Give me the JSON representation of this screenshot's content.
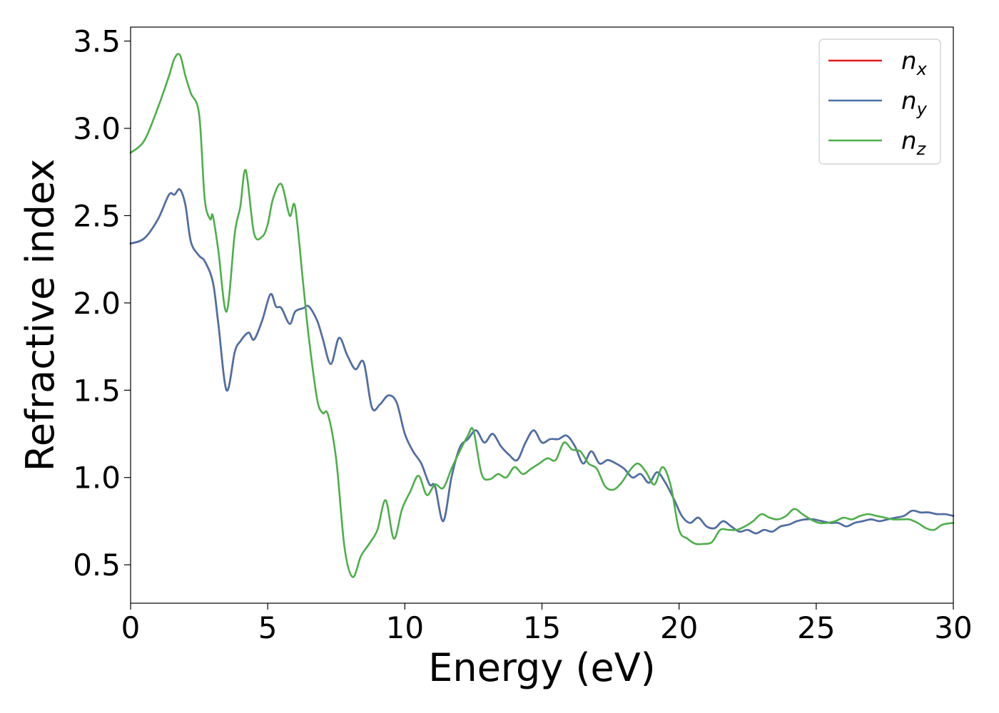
{
  "chart_data": {
    "type": "line",
    "title": "",
    "xlabel": "Energy (eV)",
    "ylabel": "Refractive index",
    "xlim": [
      0,
      30
    ],
    "ylim": [
      0.28,
      3.58
    ],
    "xticks": [
      0,
      5,
      10,
      15,
      20,
      25,
      30
    ],
    "xtick_labels": [
      "0",
      "5",
      "10",
      "15",
      "20",
      "25",
      "30"
    ],
    "yticks": [
      0.5,
      1.0,
      1.5,
      2.0,
      2.5,
      3.0,
      3.5
    ],
    "ytick_labels": [
      "0.5",
      "1.0",
      "1.5",
      "2.0",
      "2.5",
      "3.0",
      "3.5"
    ],
    "grid": false,
    "legend_position": "top-right",
    "series": [
      {
        "name": "n_x",
        "label_base": "n",
        "label_sub": "x",
        "color": "#e41a1c",
        "x": [
          0,
          0.5,
          1.0,
          1.4,
          1.6,
          1.8,
          2.0,
          2.2,
          2.5,
          2.7,
          3.0,
          3.2,
          3.5,
          3.8,
          4.0,
          4.3,
          4.5,
          4.8,
          5.1,
          5.3,
          5.5,
          5.8,
          6.0,
          6.3,
          6.5,
          6.8,
          7.0,
          7.3,
          7.6,
          7.9,
          8.2,
          8.5,
          8.8,
          9.1,
          9.4,
          9.7,
          10.0,
          10.3,
          10.6,
          10.9,
          11.1,
          11.4,
          11.7,
          12.0,
          12.3,
          12.6,
          12.9,
          13.2,
          13.5,
          13.8,
          14.1,
          14.4,
          14.7,
          15.0,
          15.3,
          15.6,
          15.9,
          16.2,
          16.5,
          16.8,
          17.1,
          17.4,
          17.7,
          18.0,
          18.3,
          18.6,
          18.9,
          19.2,
          19.5,
          19.8,
          20.1,
          20.4,
          20.7,
          21.0,
          21.3,
          21.6,
          21.9,
          22.2,
          22.5,
          22.8,
          23.1,
          23.4,
          23.7,
          24.0,
          24.3,
          24.6,
          24.9,
          25.2,
          25.5,
          25.8,
          26.1,
          26.4,
          26.7,
          27.0,
          27.3,
          27.6,
          27.9,
          28.2,
          28.5,
          28.8,
          29.1,
          29.4,
          29.7,
          30.0
        ],
        "y": [
          2.34,
          2.37,
          2.48,
          2.62,
          2.62,
          2.65,
          2.56,
          2.35,
          2.27,
          2.24,
          2.12,
          1.88,
          1.5,
          1.72,
          1.78,
          1.83,
          1.79,
          1.9,
          2.05,
          1.98,
          1.97,
          1.88,
          1.95,
          1.97,
          1.98,
          1.9,
          1.8,
          1.65,
          1.8,
          1.7,
          1.62,
          1.66,
          1.4,
          1.42,
          1.47,
          1.43,
          1.25,
          1.15,
          1.08,
          0.96,
          0.95,
          0.75,
          1.0,
          1.17,
          1.22,
          1.27,
          1.2,
          1.25,
          1.18,
          1.13,
          1.1,
          1.2,
          1.27,
          1.2,
          1.22,
          1.22,
          1.24,
          1.18,
          1.08,
          1.15,
          1.08,
          1.1,
          1.08,
          1.05,
          1.0,
          1.02,
          0.97,
          1.03,
          0.97,
          0.88,
          0.78,
          0.74,
          0.77,
          0.72,
          0.71,
          0.75,
          0.72,
          0.69,
          0.7,
          0.68,
          0.7,
          0.69,
          0.72,
          0.73,
          0.75,
          0.76,
          0.76,
          0.75,
          0.74,
          0.74,
          0.72,
          0.74,
          0.75,
          0.76,
          0.75,
          0.76,
          0.77,
          0.78,
          0.81,
          0.8,
          0.8,
          0.79,
          0.79,
          0.78
        ]
      },
      {
        "name": "n_y",
        "label_base": "n",
        "label_sub": "y",
        "color": "#4a72a8",
        "x": [
          0,
          0.5,
          1.0,
          1.4,
          1.6,
          1.8,
          2.0,
          2.2,
          2.5,
          2.7,
          3.0,
          3.2,
          3.5,
          3.8,
          4.0,
          4.3,
          4.5,
          4.8,
          5.1,
          5.3,
          5.5,
          5.8,
          6.0,
          6.3,
          6.5,
          6.8,
          7.0,
          7.3,
          7.6,
          7.9,
          8.2,
          8.5,
          8.8,
          9.1,
          9.4,
          9.7,
          10.0,
          10.3,
          10.6,
          10.9,
          11.1,
          11.4,
          11.7,
          12.0,
          12.3,
          12.6,
          12.9,
          13.2,
          13.5,
          13.8,
          14.1,
          14.4,
          14.7,
          15.0,
          15.3,
          15.6,
          15.9,
          16.2,
          16.5,
          16.8,
          17.1,
          17.4,
          17.7,
          18.0,
          18.3,
          18.6,
          18.9,
          19.2,
          19.5,
          19.8,
          20.1,
          20.4,
          20.7,
          21.0,
          21.3,
          21.6,
          21.9,
          22.2,
          22.5,
          22.8,
          23.1,
          23.4,
          23.7,
          24.0,
          24.3,
          24.6,
          24.9,
          25.2,
          25.5,
          25.8,
          26.1,
          26.4,
          26.7,
          27.0,
          27.3,
          27.6,
          27.9,
          28.2,
          28.5,
          28.8,
          29.1,
          29.4,
          29.7,
          30.0
        ],
        "y": [
          2.34,
          2.37,
          2.48,
          2.62,
          2.62,
          2.65,
          2.56,
          2.35,
          2.27,
          2.24,
          2.12,
          1.88,
          1.5,
          1.72,
          1.78,
          1.83,
          1.79,
          1.9,
          2.05,
          1.98,
          1.97,
          1.88,
          1.95,
          1.97,
          1.98,
          1.9,
          1.8,
          1.65,
          1.8,
          1.7,
          1.62,
          1.66,
          1.4,
          1.42,
          1.47,
          1.43,
          1.25,
          1.15,
          1.08,
          0.96,
          0.95,
          0.75,
          1.0,
          1.17,
          1.22,
          1.27,
          1.2,
          1.25,
          1.18,
          1.13,
          1.1,
          1.2,
          1.27,
          1.2,
          1.22,
          1.22,
          1.24,
          1.18,
          1.08,
          1.15,
          1.08,
          1.1,
          1.08,
          1.05,
          1.0,
          1.02,
          0.97,
          1.03,
          0.97,
          0.88,
          0.78,
          0.74,
          0.77,
          0.72,
          0.71,
          0.75,
          0.72,
          0.69,
          0.7,
          0.68,
          0.7,
          0.69,
          0.72,
          0.73,
          0.75,
          0.76,
          0.76,
          0.75,
          0.74,
          0.74,
          0.72,
          0.74,
          0.75,
          0.76,
          0.75,
          0.76,
          0.77,
          0.78,
          0.81,
          0.8,
          0.8,
          0.79,
          0.79,
          0.78
        ]
      },
      {
        "name": "n_z",
        "label_base": "n",
        "label_sub": "z",
        "color": "#4daf4a",
        "x": [
          0,
          0.5,
          1.0,
          1.4,
          1.6,
          1.8,
          2.0,
          2.2,
          2.5,
          2.7,
          2.9,
          3.0,
          3.2,
          3.5,
          3.8,
          4.0,
          4.2,
          4.5,
          4.8,
          5.0,
          5.2,
          5.5,
          5.8,
          6.0,
          6.3,
          6.5,
          6.8,
          7.0,
          7.2,
          7.5,
          7.8,
          8.1,
          8.4,
          8.7,
          9.0,
          9.3,
          9.6,
          9.9,
          10.2,
          10.5,
          10.8,
          11.1,
          11.4,
          11.7,
          12.0,
          12.3,
          12.5,
          12.8,
          13.1,
          13.4,
          13.7,
          14.0,
          14.3,
          14.6,
          14.9,
          15.2,
          15.5,
          15.8,
          16.1,
          16.4,
          16.7,
          17.0,
          17.3,
          17.6,
          17.9,
          18.2,
          18.5,
          18.8,
          19.1,
          19.4,
          19.7,
          20.0,
          20.3,
          20.6,
          20.9,
          21.2,
          21.5,
          21.8,
          22.1,
          22.4,
          22.7,
          23.0,
          23.3,
          23.6,
          23.9,
          24.2,
          24.5,
          24.8,
          25.1,
          25.4,
          25.7,
          26.0,
          26.3,
          26.6,
          26.9,
          27.2,
          27.5,
          27.8,
          28.1,
          28.4,
          28.7,
          29.0,
          29.3,
          29.6,
          30.0
        ],
        "y": [
          2.86,
          2.93,
          3.12,
          3.3,
          3.4,
          3.42,
          3.3,
          3.2,
          3.08,
          2.6,
          2.48,
          2.5,
          2.3,
          1.95,
          2.4,
          2.55,
          2.76,
          2.4,
          2.38,
          2.45,
          2.6,
          2.68,
          2.5,
          2.55,
          2.1,
          1.8,
          1.45,
          1.37,
          1.36,
          1.1,
          0.6,
          0.43,
          0.55,
          0.62,
          0.7,
          0.87,
          0.65,
          0.82,
          0.92,
          1.01,
          0.9,
          0.96,
          0.94,
          1.05,
          1.15,
          1.24,
          1.27,
          1.02,
          0.99,
          1.02,
          1.0,
          1.06,
          1.02,
          1.05,
          1.08,
          1.11,
          1.1,
          1.2,
          1.16,
          1.15,
          1.08,
          1.05,
          0.95,
          0.93,
          0.97,
          1.04,
          1.08,
          1.03,
          0.96,
          1.06,
          0.95,
          0.7,
          0.65,
          0.62,
          0.62,
          0.63,
          0.7,
          0.7,
          0.7,
          0.72,
          0.75,
          0.79,
          0.77,
          0.76,
          0.78,
          0.82,
          0.79,
          0.76,
          0.74,
          0.74,
          0.75,
          0.77,
          0.76,
          0.78,
          0.79,
          0.78,
          0.77,
          0.76,
          0.76,
          0.76,
          0.74,
          0.71,
          0.7,
          0.73,
          0.74
        ]
      }
    ]
  }
}
